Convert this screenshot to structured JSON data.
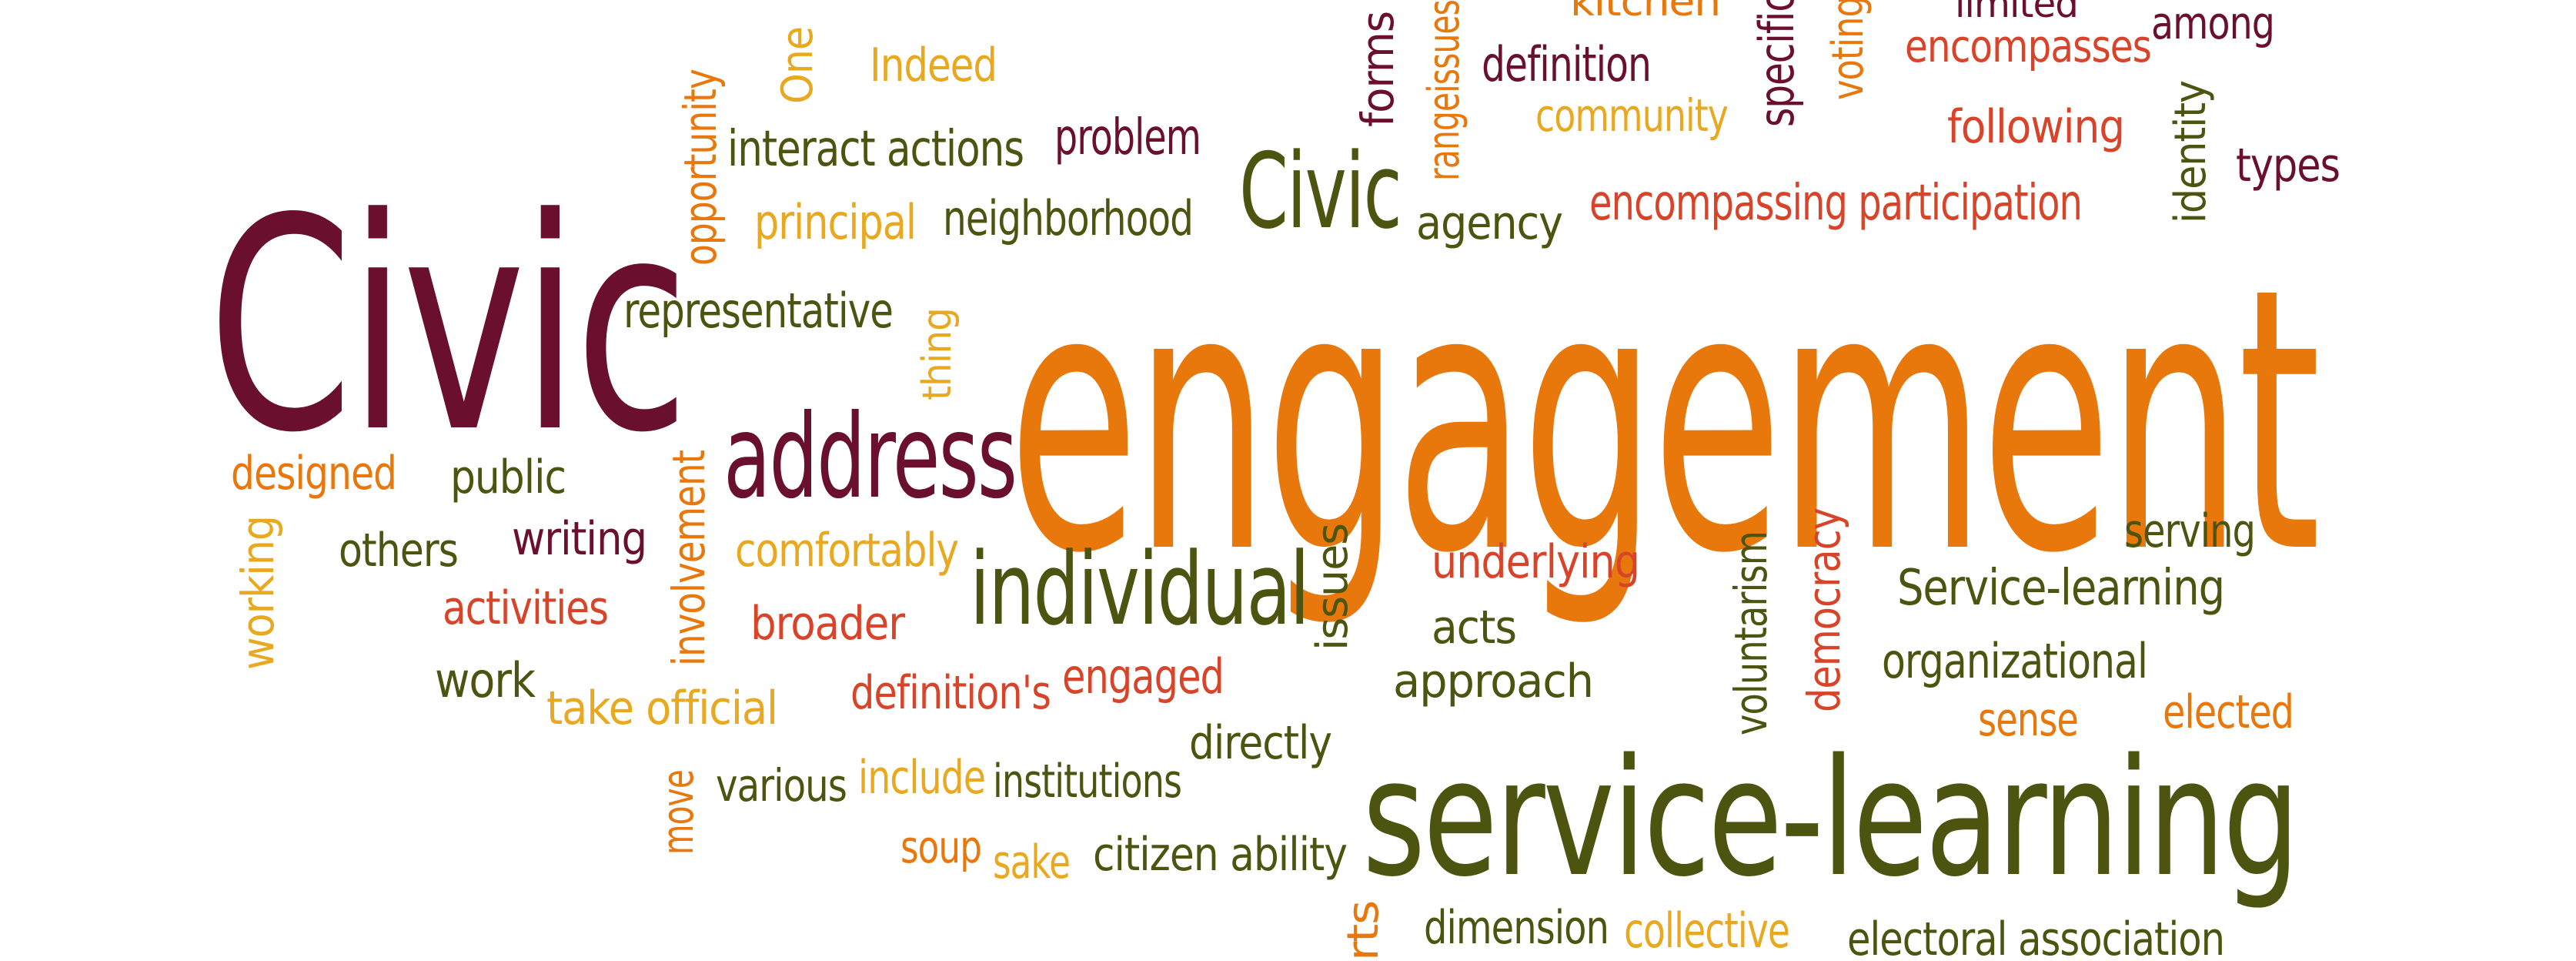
{
  "colors": {
    "maroon": "#6b0f2e",
    "orange": "#e8770c",
    "olive": "#4c5410",
    "red": "#d8442a",
    "yellow": "#e8a820",
    "background": "#ffffff"
  },
  "words": [
    "Civic",
    "engagement",
    "service-learning",
    "address",
    "individual",
    "Civic",
    "representative",
    "neighborhood",
    "principal",
    "interact actions",
    "problem",
    "Indeed",
    "One",
    "opportunity",
    "forms",
    "rangeissues",
    "definition",
    "community",
    "kitchen",
    "specific",
    "voting",
    "limited",
    "encompasses",
    "among",
    "following",
    "identity",
    "types",
    "encompassing participation",
    "agency",
    "thing",
    "designed",
    "public",
    "working",
    "others",
    "writing",
    "activities",
    "involvement",
    "comfortably",
    "broader",
    "work",
    "take official",
    "definition's",
    "engaged",
    "move",
    "various",
    "include",
    "institutions",
    "directly",
    "soup",
    "sake",
    "citizen ability",
    "issues",
    "underlying",
    "acts",
    "approach",
    "voluntarism",
    "democracy",
    "serving",
    "Service-learning",
    "organizational",
    "sense",
    "elected",
    "rts",
    "dimension",
    "collective",
    "electoral association"
  ]
}
